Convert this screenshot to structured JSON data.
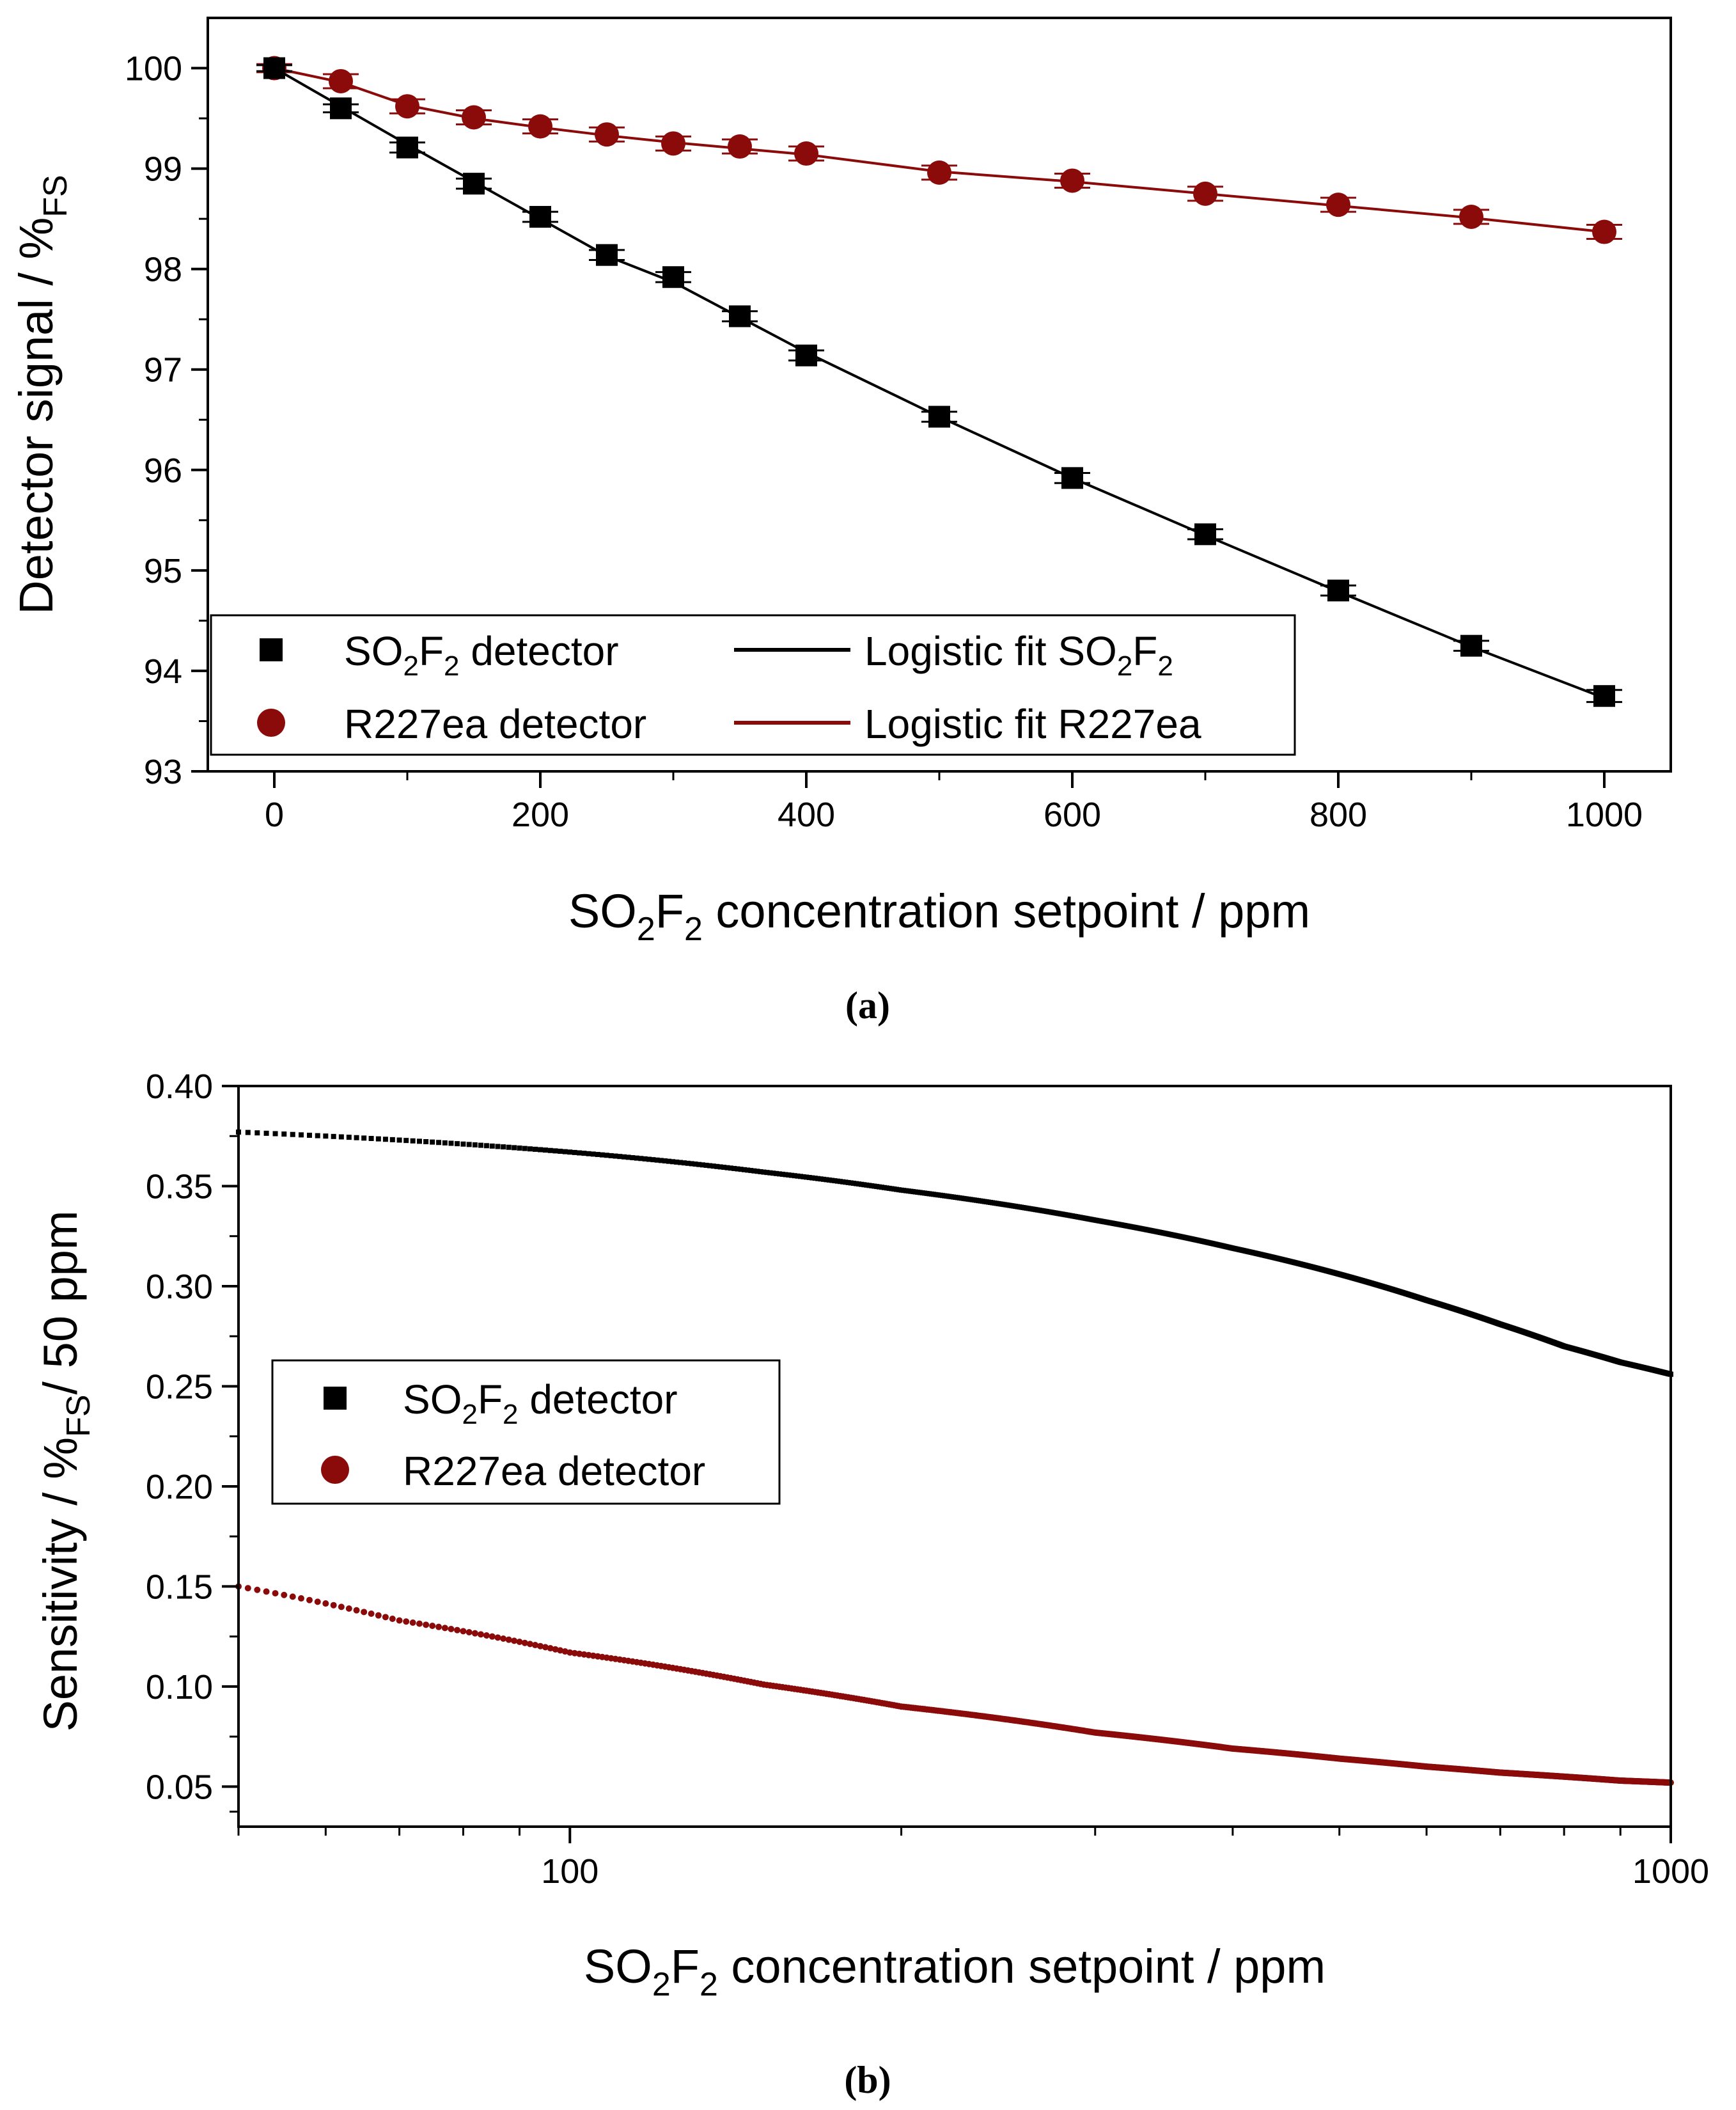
{
  "colors": {
    "so2f2": "#000000",
    "r227ea": "#8b0a0a",
    "frame": "#000000"
  },
  "chart_data": [
    {
      "panel": "a",
      "type": "scatter",
      "panel_label": "(a)",
      "xlabel": {
        "pre": "SO",
        "sub1": "2",
        "mid": "F",
        "sub2": "2",
        "post": " concentration setpoint / ppm"
      },
      "ylabel": {
        "main": "Detector signal / %",
        "sub": "FS"
      },
      "xlim": [
        -50,
        1050
      ],
      "ylim": [
        93,
        100.5
      ],
      "xticks": [
        0,
        200,
        400,
        600,
        800,
        1000
      ],
      "xtick_labels": [
        "0",
        "200",
        "400",
        "600",
        "800",
        "1000"
      ],
      "yticks": [
        93,
        94,
        95,
        96,
        97,
        98,
        99,
        100
      ],
      "ytick_labels": [
        "93",
        "94",
        "95",
        "96",
        "97",
        "98",
        "99",
        "100"
      ],
      "x": [
        0,
        50,
        100,
        150,
        200,
        250,
        300,
        350,
        400,
        500,
        600,
        700,
        800,
        900,
        1000
      ],
      "series": [
        {
          "name": "SO2F2 detector",
          "marker": "square",
          "color": "#000000",
          "values": [
            100.0,
            99.6,
            99.21,
            98.85,
            98.52,
            98.14,
            97.92,
            97.53,
            97.14,
            96.53,
            95.92,
            95.36,
            94.8,
            94.25,
            93.75
          ],
          "err": [
            0.03,
            0.04,
            0.05,
            0.05,
            0.05,
            0.05,
            0.05,
            0.05,
            0.05,
            0.05,
            0.05,
            0.05,
            0.05,
            0.05,
            0.06
          ]
        },
        {
          "name": "R227ea detector",
          "marker": "circle",
          "color": "#8b0a0a",
          "values": [
            100.0,
            99.87,
            99.62,
            99.51,
            99.42,
            99.34,
            99.25,
            99.22,
            99.15,
            98.96,
            98.88,
            98.75,
            98.64,
            98.52,
            98.37
          ],
          "err": [
            0.04,
            0.07,
            0.07,
            0.07,
            0.07,
            0.07,
            0.07,
            0.07,
            0.07,
            0.07,
            0.07,
            0.07,
            0.07,
            0.07,
            0.07
          ]
        }
      ],
      "fits": [
        {
          "name": "Logistic fit SO2F2",
          "color": "#000000",
          "x": [
            0,
            50,
            100,
            150,
            200,
            250,
            300,
            350,
            400,
            500,
            600,
            700,
            800,
            900,
            1000
          ],
          "values": [
            100.0,
            99.62,
            99.24,
            98.87,
            98.5,
            98.13,
            97.87,
            97.52,
            97.17,
            96.53,
            95.92,
            95.35,
            94.79,
            94.24,
            93.73
          ]
        },
        {
          "name": "Logistic fit R227ea",
          "color": "#8b0a0a",
          "x": [
            0,
            50,
            100,
            150,
            200,
            250,
            300,
            350,
            400,
            500,
            600,
            700,
            800,
            900,
            1000
          ],
          "values": [
            100.0,
            99.86,
            99.63,
            99.5,
            99.41,
            99.33,
            99.26,
            99.2,
            99.14,
            98.97,
            98.87,
            98.75,
            98.63,
            98.51,
            98.37
          ]
        }
      ],
      "legend": {
        "placement": "bottom-left",
        "entries": [
          {
            "pre": "SO",
            "sub1": "2",
            "mid": "F",
            "sub2": "2",
            "post": " detector"
          },
          {
            "pre": "Logistic fit SO",
            "sub1": "2",
            "mid": "F",
            "sub2": "2",
            "post": ""
          },
          {
            "pre": "R227ea detector",
            "sub1": "",
            "mid": "",
            "sub2": "",
            "post": ""
          },
          {
            "pre": "Logistic fit R227ea",
            "sub1": "",
            "mid": "",
            "sub2": "",
            "post": ""
          }
        ]
      }
    },
    {
      "panel": "b",
      "type": "scatter",
      "panel_label": "(b)",
      "xscale": "log",
      "xlabel": {
        "pre": "SO",
        "sub1": "2",
        "mid": "F",
        "sub2": "2",
        "post": " concentration setpoint / ppm"
      },
      "ylabel": {
        "pre": "Sensitivity / %",
        "sub": "FS",
        "post": "/ 50 ppm"
      },
      "xlim": [
        50,
        1000
      ],
      "ylim": [
        0.03,
        0.4
      ],
      "xticks": [
        100,
        1000
      ],
      "xtick_labels": [
        "100",
        "1000"
      ],
      "yticks": [
        0.05,
        0.1,
        0.15,
        0.2,
        0.25,
        0.3,
        0.35,
        0.4
      ],
      "ytick_labels": [
        "0.05",
        "0.10",
        "0.15",
        "0.20",
        "0.25",
        "0.30",
        "0.35",
        "0.40"
      ],
      "x_range": [
        50,
        1000
      ],
      "series": [
        {
          "name": "SO2F2 detector",
          "marker": "square",
          "color": "#000000",
          "x": [
            50,
            70,
            100,
            150,
            200,
            300,
            400,
            500,
            600,
            700,
            800,
            900,
            1000
          ],
          "values": [
            0.377,
            0.373,
            0.367,
            0.357,
            0.348,
            0.333,
            0.319,
            0.306,
            0.293,
            0.281,
            0.27,
            0.262,
            0.256
          ]
        },
        {
          "name": "R227ea detector",
          "marker": "circle",
          "color": "#8b0a0a",
          "x": [
            50,
            70,
            100,
            150,
            200,
            300,
            400,
            500,
            600,
            700,
            800,
            900,
            1000
          ],
          "values": [
            0.15,
            0.133,
            0.117,
            0.101,
            0.09,
            0.077,
            0.069,
            0.064,
            0.06,
            0.057,
            0.055,
            0.053,
            0.052
          ]
        }
      ],
      "legend": {
        "placement": "center-left",
        "entries": [
          {
            "pre": "SO",
            "sub1": "2",
            "mid": "F",
            "sub2": "2",
            "post": " detector"
          },
          {
            "pre": "R227ea detector",
            "sub1": "",
            "mid": "",
            "sub2": "",
            "post": ""
          }
        ]
      }
    }
  ]
}
